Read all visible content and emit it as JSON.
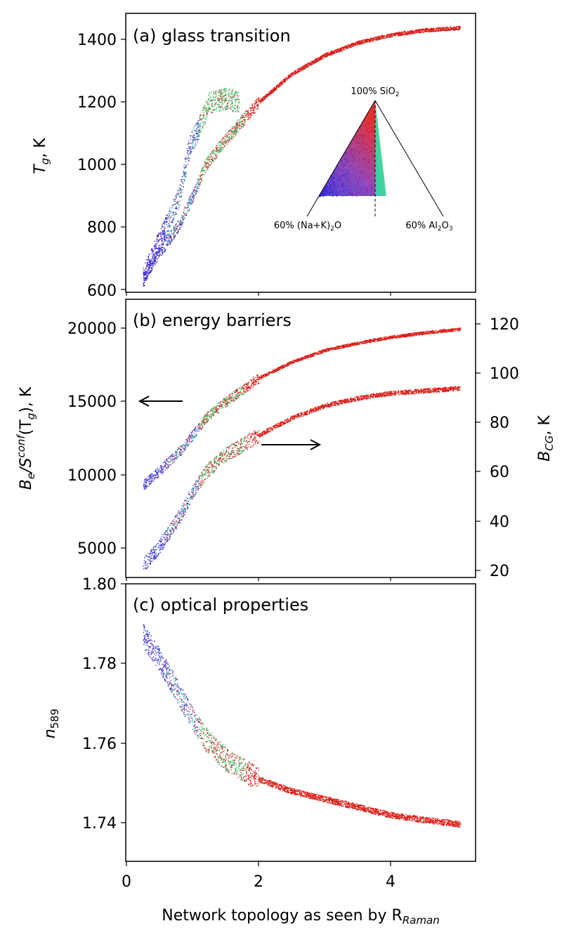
{
  "figure": {
    "xlabel_main": "Network topology as seen by R",
    "xlabel_sub": "Raman",
    "x_ticks": [
      "0",
      "2",
      "4"
    ]
  },
  "chart_data": [
    {
      "type": "scatter",
      "panel_label": "(a) glass transition",
      "ylabel_main": "T",
      "ylabel_sub": "g",
      "ylabel_unit": ", K",
      "xlim": [
        0,
        5.3
      ],
      "ylim": [
        590,
        1480
      ],
      "y_ticks": [
        "600",
        "800",
        "1000",
        "1200",
        "1400"
      ],
      "series": [
        {
          "color_scheme": "rainbow-composition",
          "band_x": [
            0.25,
            0.5,
            0.8,
            1.0,
            1.2,
            1.5,
            2.0,
            2.5,
            3.0,
            3.5,
            4.0,
            4.5,
            5.05
          ],
          "band_y": [
            640,
            720,
            810,
            900,
            1000,
            1080,
            1200,
            1290,
            1350,
            1390,
            1415,
            1430,
            1438
          ],
          "green_branch_x": [
            0.25,
            0.5,
            0.8,
            0.95,
            1.1,
            1.25,
            1.5,
            1.7
          ],
          "green_branch_y": [
            640,
            760,
            900,
            1060,
            1120,
            1200,
            1210,
            1200
          ]
        }
      ],
      "inset": {
        "top_label": "100% SiO",
        "top_label_sub": "2",
        "left_label": "60% (Na+K)",
        "left_label_sub": "2",
        "left_label_end": "O",
        "right_label": "60% Al",
        "right_label_sub": "2",
        "right_label_mid": "O",
        "right_label_sub2": "3"
      }
    },
    {
      "type": "scatter",
      "panel_label": "(b) energy barriers",
      "ylabel_left_main": "B",
      "ylabel_left_sub": "e",
      "ylabel_left_mid": "/S",
      "ylabel_left_sup": "conf",
      "ylabel_left_end": "(T",
      "ylabel_left_sub2": "g",
      "ylabel_left_unit": "), K",
      "ylabel_right_main": "B",
      "ylabel_right_sub": "CG",
      "ylabel_right_unit": ", K",
      "xlim": [
        0,
        5.3
      ],
      "ylim_left": [
        3200,
        22000
      ],
      "ylim_right": [
        18,
        131
      ],
      "y_ticks_left": [
        "5000",
        "10000",
        "15000",
        "20000"
      ],
      "y_ticks_right": [
        "20",
        "40",
        "60",
        "80",
        "100",
        "120"
      ],
      "series": [
        {
          "axis": "left",
          "band_x": [
            0.25,
            0.5,
            0.8,
            1.0,
            1.2,
            1.5,
            2.0,
            2.5,
            3.0,
            3.5,
            4.0,
            4.5,
            5.05
          ],
          "band_y": [
            9300,
            10300,
            11600,
            12700,
            13900,
            15000,
            16600,
            17700,
            18500,
            19000,
            19400,
            19700,
            19950
          ]
        },
        {
          "axis": "right",
          "band_x": [
            0.25,
            0.5,
            0.8,
            1.0,
            1.2,
            1.5,
            2.0,
            2.5,
            3.0,
            3.5,
            4.0,
            4.5,
            5.05
          ],
          "band_y": [
            22,
            30,
            42,
            52,
            60,
            67,
            75,
            82,
            87,
            90,
            92,
            93,
            94
          ]
        }
      ]
    },
    {
      "type": "scatter",
      "panel_label": "(c) optical properties",
      "ylabel_main": "n",
      "ylabel_sub": "589",
      "xlim": [
        0,
        5.3
      ],
      "ylim": [
        1.73,
        1.8
      ],
      "y_ticks": [
        "1.74",
        "1.76",
        "1.78",
        "1.80"
      ],
      "series": [
        {
          "band_x": [
            0.25,
            0.5,
            0.8,
            1.0,
            1.2,
            1.5,
            2.0,
            2.5,
            3.0,
            3.5,
            4.0,
            4.5,
            5.05
          ],
          "band_y": [
            1.787,
            1.781,
            1.772,
            1.766,
            1.761,
            1.756,
            1.751,
            1.748,
            1.746,
            1.744,
            1.742,
            1.7408,
            1.7397
          ]
        }
      ]
    }
  ]
}
